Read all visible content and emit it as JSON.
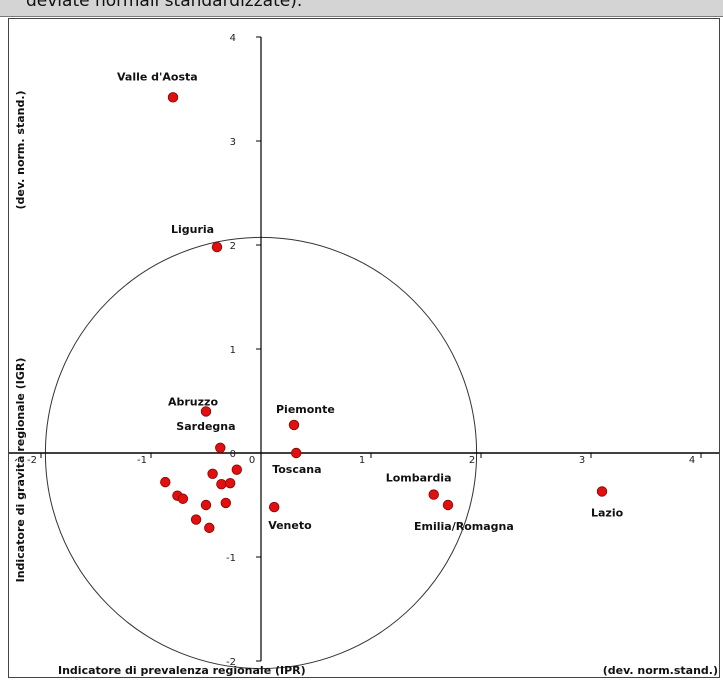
{
  "header": {
    "text": "deviate normali standardizzate)."
  },
  "chart_data": {
    "type": "scatter",
    "xlabel": "Indicatore di prevalenza regionale (IPR)",
    "xunit": "(dev. norm.stand.)",
    "ylabel": "Indicatore di gravità regionale (IGR)",
    "yunit": "(dev. norm. stand.)",
    "xlim": [
      -2,
      4
    ],
    "ylim": [
      -2,
      4
    ],
    "x_ticks": [
      "-2",
      "-1",
      "0",
      "1",
      "2",
      "3",
      "4"
    ],
    "y_ticks": [
      "4",
      "3",
      "2",
      "1",
      "0",
      "-1",
      "-2"
    ],
    "circle": {
      "center": [
        0,
        0
      ],
      "radius": 1.96
    },
    "labeled_points": [
      {
        "label": "Valle d'Aosta",
        "x": -0.8,
        "y": 3.42
      },
      {
        "label": "Liguria",
        "x": -0.4,
        "y": 1.98
      },
      {
        "label": "Abruzzo",
        "x": -0.5,
        "y": 0.4
      },
      {
        "label": "Sardegna",
        "x": -0.37,
        "y": 0.05
      },
      {
        "label": "Piemonte",
        "x": 0.3,
        "y": 0.27
      },
      {
        "label": "Toscana",
        "x": 0.32,
        "y": 0.0
      },
      {
        "label": "Veneto",
        "x": 0.12,
        "y": -0.52
      },
      {
        "label": "Lombardia",
        "x": 1.57,
        "y": -0.4
      },
      {
        "label": "Emilia/Romagna",
        "x": 1.7,
        "y": -0.5
      },
      {
        "label": "Lazio",
        "x": 3.1,
        "y": -0.37
      }
    ],
    "unlabeled_points": [
      {
        "x": -0.87,
        "y": -0.28
      },
      {
        "x": -0.76,
        "y": -0.41
      },
      {
        "x": -0.71,
        "y": -0.44
      },
      {
        "x": -0.59,
        "y": -0.64
      },
      {
        "x": -0.5,
        "y": -0.5
      },
      {
        "x": -0.47,
        "y": -0.72
      },
      {
        "x": -0.44,
        "y": -0.2
      },
      {
        "x": -0.36,
        "y": -0.3
      },
      {
        "x": -0.32,
        "y": -0.48
      },
      {
        "x": -0.28,
        "y": -0.29
      },
      {
        "x": -0.22,
        "y": -0.16
      }
    ],
    "marker_color": "#e01010"
  }
}
